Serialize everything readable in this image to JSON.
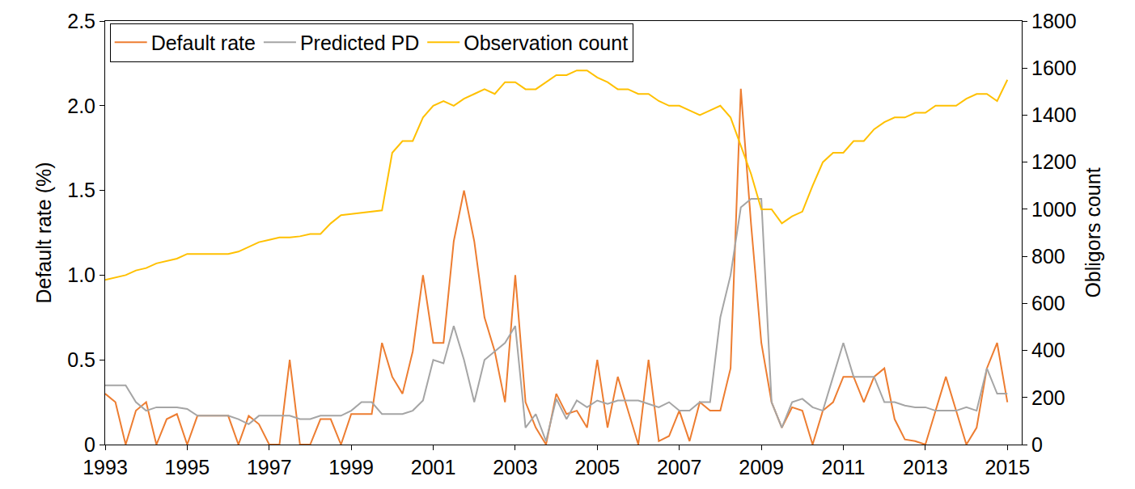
{
  "chart_data": {
    "type": "line",
    "ylabel": "Default rate (%)",
    "y2label": "Obligors count",
    "x": [
      1993,
      1993.25,
      1993.5,
      1993.75,
      1994,
      1994.25,
      1994.5,
      1994.75,
      1995,
      1995.25,
      1995.5,
      1995.75,
      1996,
      1996.25,
      1996.5,
      1996.75,
      1997,
      1997.25,
      1997.5,
      1997.75,
      1998,
      1998.25,
      1998.5,
      1998.75,
      1999,
      1999.25,
      1999.5,
      1999.75,
      2000,
      2000.25,
      2000.5,
      2000.75,
      2001,
      2001.25,
      2001.5,
      2001.75,
      2002,
      2002.25,
      2002.5,
      2002.75,
      2003,
      2003.25,
      2003.5,
      2003.75,
      2004,
      2004.25,
      2004.5,
      2004.75,
      2005,
      2005.25,
      2005.5,
      2005.75,
      2006,
      2006.25,
      2006.5,
      2006.75,
      2007,
      2007.25,
      2007.5,
      2007.75,
      2008,
      2008.25,
      2008.5,
      2008.75,
      2009,
      2009.25,
      2009.5,
      2009.75,
      2010,
      2010.25,
      2010.5,
      2010.75,
      2011,
      2011.25,
      2011.5,
      2011.75,
      2012,
      2012.25,
      2012.5,
      2012.75,
      2013,
      2013.25,
      2013.5,
      2013.75,
      2014,
      2014.25,
      2014.5,
      2014.75,
      2015
    ],
    "series": [
      {
        "name": "Default rate",
        "color": "#ed7d31",
        "values": [
          0.3,
          0.25,
          0.0,
          0.2,
          0.25,
          0.0,
          0.15,
          0.18,
          0.0,
          0.17,
          0.17,
          0.17,
          0.17,
          0.0,
          0.17,
          0.12,
          0.0,
          0.0,
          0.5,
          0.0,
          0.0,
          0.15,
          0.15,
          0.0,
          0.18,
          0.18,
          0.18,
          0.6,
          0.4,
          0.3,
          0.55,
          1.0,
          0.6,
          0.6,
          1.2,
          1.5,
          1.2,
          0.75,
          0.55,
          0.25,
          1.0,
          0.25,
          0.1,
          0.0,
          0.3,
          0.18,
          0.2,
          0.1,
          0.5,
          0.1,
          0.4,
          0.2,
          0.0,
          0.5,
          0.02,
          0.05,
          0.2,
          0.02,
          0.25,
          0.2,
          0.2,
          0.45,
          2.1,
          1.3,
          0.6,
          0.25,
          0.1,
          0.22,
          0.2,
          0.0,
          0.2,
          0.25,
          0.4,
          0.4,
          0.25,
          0.4,
          0.45,
          0.15,
          0.03,
          0.02,
          0.0,
          0.2,
          0.4,
          0.2,
          0.0,
          0.1,
          0.45,
          0.6,
          0.25
        ]
      },
      {
        "name": "Predicted PD",
        "color": "#a5a5a5",
        "values": [
          0.35,
          0.35,
          0.35,
          0.25,
          0.2,
          0.22,
          0.22,
          0.22,
          0.21,
          0.17,
          0.17,
          0.17,
          0.17,
          0.15,
          0.12,
          0.17,
          0.17,
          0.17,
          0.17,
          0.15,
          0.15,
          0.17,
          0.17,
          0.17,
          0.2,
          0.25,
          0.25,
          0.18,
          0.18,
          0.18,
          0.2,
          0.26,
          0.5,
          0.48,
          0.7,
          0.5,
          0.25,
          0.5,
          0.55,
          0.6,
          0.7,
          0.1,
          0.18,
          0.02,
          0.27,
          0.15,
          0.26,
          0.22,
          0.26,
          0.24,
          0.26,
          0.26,
          0.26,
          0.24,
          0.22,
          0.25,
          0.2,
          0.2,
          0.25,
          0.25,
          0.75,
          1.0,
          1.4,
          1.45,
          1.45,
          0.25,
          0.1,
          0.25,
          0.27,
          0.22,
          0.2,
          0.4,
          0.6,
          0.4,
          0.4,
          0.4,
          0.25,
          0.25,
          0.23,
          0.22,
          0.22,
          0.2,
          0.2,
          0.2,
          0.22,
          0.2,
          0.45,
          0.3,
          0.3
        ]
      },
      {
        "name": "Observation count",
        "color": "#ffc000",
        "axis": "y2",
        "values": [
          700,
          710,
          720,
          740,
          750,
          770,
          780,
          790,
          810,
          810,
          810,
          810,
          810,
          820,
          840,
          860,
          870,
          880,
          880,
          885,
          895,
          895,
          940,
          975,
          980,
          985,
          990,
          995,
          1240,
          1290,
          1290,
          1390,
          1440,
          1460,
          1440,
          1470,
          1490,
          1510,
          1490,
          1540,
          1540,
          1510,
          1510,
          1540,
          1570,
          1570,
          1590,
          1590,
          1560,
          1540,
          1510,
          1510,
          1490,
          1490,
          1460,
          1440,
          1440,
          1420,
          1400,
          1420,
          1440,
          1390,
          1270,
          1150,
          1000,
          1000,
          940,
          970,
          990,
          1100,
          1200,
          1240,
          1240,
          1290,
          1290,
          1340,
          1370,
          1390,
          1390,
          1410,
          1410,
          1440,
          1440,
          1440,
          1470,
          1490,
          1490,
          1460,
          1550
        ]
      }
    ],
    "xlim": [
      1993,
      2015.35
    ],
    "xticks": [
      1993,
      1995,
      1997,
      1999,
      2001,
      2003,
      2005,
      2007,
      2009,
      2011,
      2013,
      2015
    ],
    "ylim": [
      0,
      2.5
    ],
    "yticks": [
      0,
      0.5,
      {
        "value": 1,
        "label": "1.0"
      },
      1.5,
      {
        "value": 2,
        "label": "2.0"
      },
      2.5
    ],
    "y2lim": [
      0,
      1800
    ],
    "y2ticks": [
      0,
      200,
      400,
      600,
      800,
      1000,
      1200,
      1400,
      1600,
      1800
    ],
    "grid": false,
    "legend": "upper left"
  }
}
